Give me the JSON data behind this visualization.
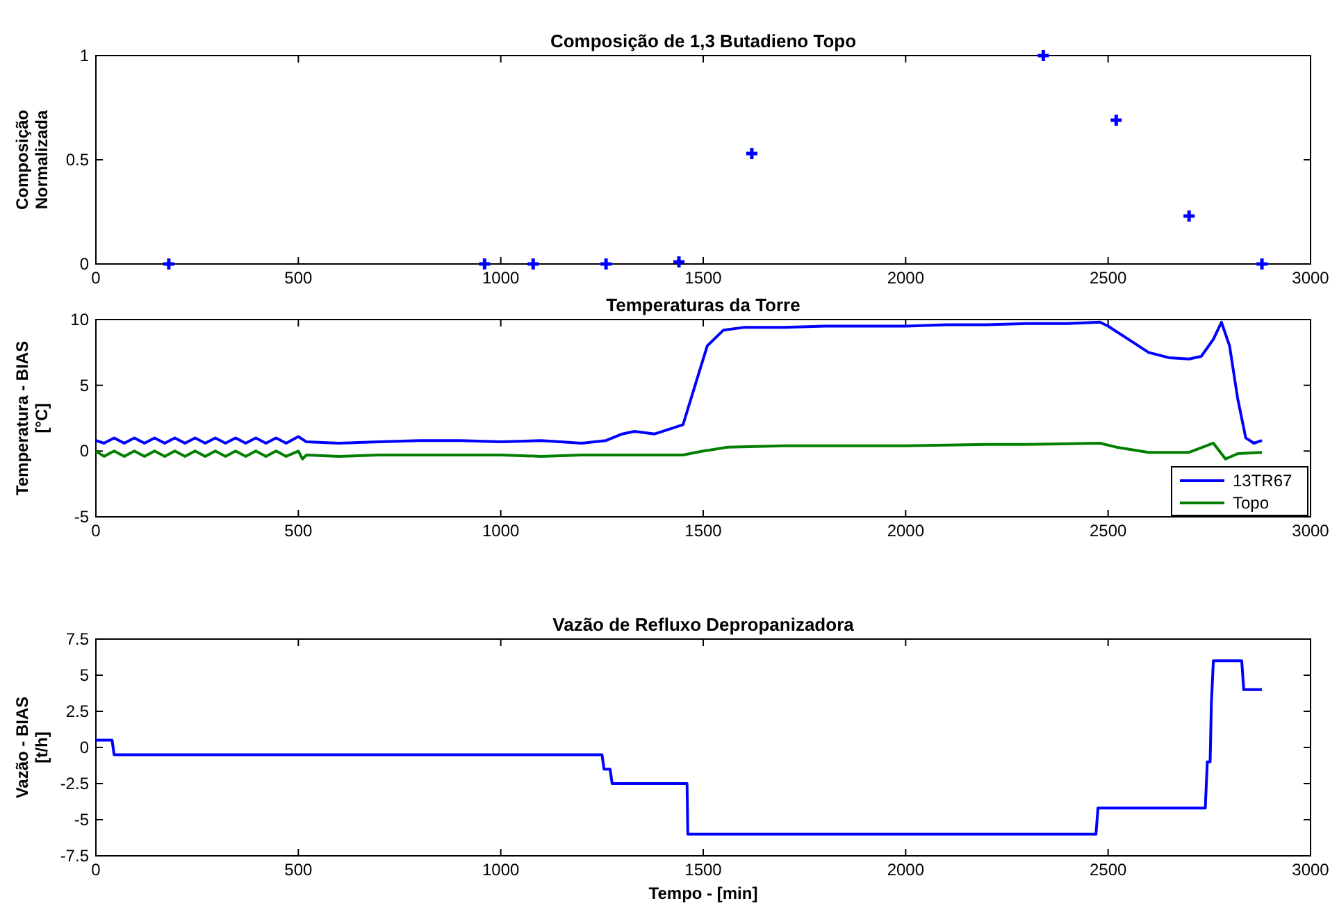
{
  "chart_data": [
    {
      "type": "scatter",
      "title": "Composição de 1,3 Butadieno Topo",
      "ylabel": "Composição\nNormalizada",
      "x": [
        180,
        960,
        1080,
        1260,
        1440,
        1620,
        2340,
        2520,
        2700,
        2880
      ],
      "series": [
        {
          "color": "#0000ff",
          "values": [
            0,
            0,
            0,
            0,
            0.01,
            0.53,
            1,
            0.69,
            0.23,
            0
          ]
        }
      ],
      "marker": "cross",
      "xlim": [
        0,
        3000
      ],
      "xticks": [
        0,
        500,
        1000,
        1500,
        2000,
        2500,
        3000
      ],
      "ylim": [
        0,
        1
      ],
      "yticks": [
        0,
        0.5,
        1
      ],
      "grid": false,
      "legend": false
    },
    {
      "type": "line",
      "title": "Temperaturas da Torre",
      "ylabel": "Temperatura - BIAS\n[°C]",
      "series": [
        {
          "name": "13TR67",
          "color": "#0000ff",
          "x": [
            0,
            20,
            45,
            70,
            95,
            120,
            145,
            170,
            195,
            220,
            245,
            270,
            295,
            320,
            345,
            370,
            395,
            420,
            445,
            470,
            500,
            520,
            600,
            700,
            800,
            900,
            1000,
            1100,
            1200,
            1260,
            1300,
            1330,
            1380,
            1420,
            1450,
            1480,
            1510,
            1550,
            1600,
            1700,
            1800,
            1900,
            2000,
            2100,
            2200,
            2300,
            2400,
            2480,
            2500,
            2550,
            2600,
            2650,
            2700,
            2730,
            2760,
            2780,
            2800,
            2820,
            2840,
            2860,
            2880
          ],
          "values": [
            0.8,
            0.6,
            1,
            0.6,
            1,
            0.6,
            1,
            0.6,
            1,
            0.6,
            1,
            0.6,
            1,
            0.6,
            1,
            0.6,
            1,
            0.6,
            1,
            0.6,
            1.1,
            0.7,
            0.6,
            0.7,
            0.8,
            0.8,
            0.7,
            0.8,
            0.6,
            0.8,
            1.3,
            1.5,
            1.3,
            1.7,
            2.0,
            5,
            8,
            9.2,
            9.4,
            9.4,
            9.5,
            9.5,
            9.5,
            9.6,
            9.6,
            9.7,
            9.7,
            9.8,
            9.5,
            8.5,
            7.5,
            7.1,
            7.0,
            7.2,
            8.5,
            9.8,
            8.0,
            4,
            1.0,
            0.6,
            0.8
          ]
        },
        {
          "name": "Topo",
          "color": "#007f00",
          "x": [
            0,
            20,
            45,
            70,
            95,
            120,
            145,
            170,
            195,
            220,
            245,
            270,
            295,
            320,
            345,
            370,
            395,
            420,
            445,
            470,
            500,
            510,
            520,
            600,
            700,
            800,
            900,
            1000,
            1100,
            1200,
            1300,
            1400,
            1450,
            1500,
            1560,
            1700,
            1800,
            2000,
            2200,
            2300,
            2480,
            2520,
            2600,
            2700,
            2760,
            2790,
            2820,
            2880
          ],
          "values": [
            0,
            -0.4,
            0,
            -0.4,
            0,
            -0.4,
            0,
            -0.4,
            0,
            -0.4,
            0,
            -0.4,
            0,
            -0.4,
            0,
            -0.4,
            0,
            -0.4,
            0,
            -0.4,
            0,
            -0.6,
            -0.3,
            -0.4,
            -0.3,
            -0.3,
            -0.3,
            -0.3,
            -0.4,
            -0.3,
            -0.3,
            -0.3,
            -0.3,
            0,
            0.3,
            0.4,
            0.4,
            0.4,
            0.5,
            0.5,
            0.6,
            0.3,
            -0.1,
            -0.1,
            0.6,
            -0.6,
            -0.2,
            -0.1
          ]
        }
      ],
      "xlim": [
        0,
        3000
      ],
      "xticks": [
        0,
        500,
        1000,
        1500,
        2000,
        2500,
        3000
      ],
      "ylim": [
        -5,
        10
      ],
      "yticks": [
        -5,
        0,
        5,
        10
      ],
      "grid": false,
      "legend": "bottom right",
      "marker": "none",
      "line_style": "solid"
    },
    {
      "type": "line",
      "title": "Vazão de Refluxo Depropanizadora",
      "xlabel": "Tempo - [min]",
      "ylabel": "Vazão - BIAS\n[t/h]",
      "x": [
        0,
        40,
        45,
        1250,
        1255,
        1270,
        1275,
        1460,
        1462,
        2470,
        2475,
        2740,
        2745,
        2752,
        2755,
        2760,
        2830,
        2835,
        2880
      ],
      "series": [
        {
          "color": "#0000ff",
          "values": [
            0.5,
            0.5,
            -0.5,
            -0.5,
            -1.5,
            -1.5,
            -2.5,
            -2.5,
            -6,
            -6,
            -4.2,
            -4.2,
            -1,
            -1,
            3,
            6,
            6,
            4,
            4
          ]
        }
      ],
      "xlim": [
        0,
        3000
      ],
      "xticks": [
        0,
        500,
        1000,
        1500,
        2000,
        2500,
        3000
      ],
      "ylim": [
        -7.5,
        7.5
      ],
      "yticks": [
        -7.5,
        -5,
        -2.5,
        0,
        2.5,
        5,
        7.5
      ],
      "grid": false,
      "legend": false,
      "marker": "none",
      "line_style": "solid"
    }
  ]
}
